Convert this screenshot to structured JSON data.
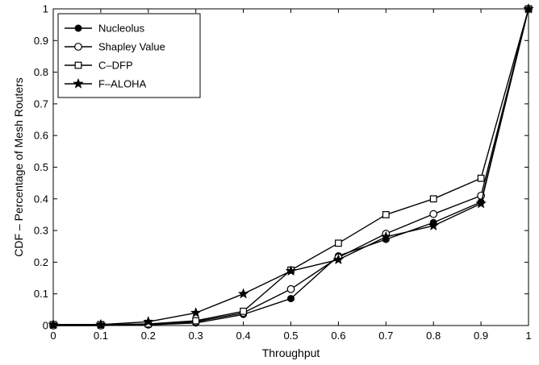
{
  "chart_data": {
    "type": "line",
    "xlabel": "Throughput",
    "ylabel": "CDF – Percentage of Mesh Routers",
    "xlim": [
      0,
      1
    ],
    "ylim": [
      0,
      1
    ],
    "xticks": [
      "0",
      "0.1",
      "0.2",
      "0.3",
      "0.4",
      "0.5",
      "0.6",
      "0.7",
      "0.8",
      "0.9",
      "1"
    ],
    "yticks": [
      "0",
      "0.1",
      "0.2",
      "0.3",
      "0.4",
      "0.5",
      "0.6",
      "0.7",
      "0.8",
      "0.9",
      "1"
    ],
    "grid": false,
    "legend_position": "top-left",
    "x": [
      0,
      0.1,
      0.2,
      0.3,
      0.4,
      0.5,
      0.6,
      0.7,
      0.8,
      0.9,
      1
    ],
    "series": [
      {
        "name": "Nucleolus",
        "marker": "filled-circle",
        "color": "#000000",
        "values": [
          0.0,
          0.0,
          0.002,
          0.008,
          0.035,
          0.085,
          0.22,
          0.272,
          0.325,
          0.39,
          1.0
        ]
      },
      {
        "name": "Shapley Value",
        "marker": "open-circle",
        "color": "#000000",
        "values": [
          0.0,
          0.0,
          0.003,
          0.012,
          0.04,
          0.115,
          0.215,
          0.29,
          0.352,
          0.41,
          1.0
        ]
      },
      {
        "name": "C–DFP",
        "marker": "open-square",
        "color": "#000000",
        "values": [
          0.003,
          0.003,
          0.005,
          0.015,
          0.045,
          0.175,
          0.26,
          0.35,
          0.4,
          0.465,
          1.0
        ]
      },
      {
        "name": "F–ALOHA",
        "marker": "star",
        "color": "#000000",
        "values": [
          0.003,
          0.003,
          0.012,
          0.04,
          0.1,
          0.172,
          0.208,
          0.28,
          0.315,
          0.385,
          1.0
        ]
      }
    ]
  }
}
